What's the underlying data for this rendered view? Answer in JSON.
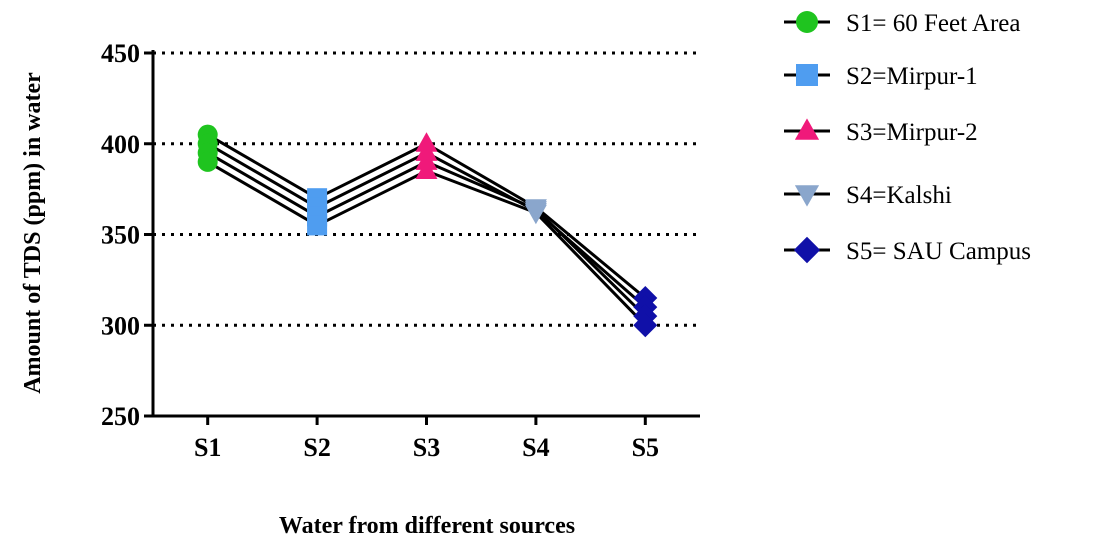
{
  "chart_data": {
    "type": "line",
    "xlabel": "Water from different sources",
    "ylabel": "Amount of  TDS (ppm) in water",
    "ylim": [
      250,
      450
    ],
    "yticks": [
      250,
      300,
      350,
      400,
      450
    ],
    "grid": "horizontal dotted",
    "legend_position": "right",
    "categories": [
      "S1",
      "S2",
      "S3",
      "S4",
      "S5"
    ],
    "series": [
      {
        "values": [
          405,
          370,
          400,
          365,
          315
        ]
      },
      {
        "values": [
          400,
          365,
          395,
          363,
          310
        ]
      },
      {
        "values": [
          395,
          360,
          390,
          364,
          305
        ]
      },
      {
        "values": [
          390,
          355,
          385,
          362,
          300
        ]
      }
    ],
    "markers": [
      {
        "category": "S1",
        "label": "S1= 60 Feet Area",
        "shape": "circle",
        "color": "#1fc41f"
      },
      {
        "category": "S2",
        "label": "S2=Mirpur-1",
        "shape": "square",
        "color": "#4f9df0"
      },
      {
        "category": "S3",
        "label": "S3=Mirpur-2",
        "shape": "triangle-up",
        "color": "#f0197a"
      },
      {
        "category": "S4",
        "label": "S4=Kalshi",
        "shape": "triangle-down",
        "color": "#8aa6cc"
      },
      {
        "category": "S5",
        "label": "S5= SAU Campus",
        "shape": "diamond",
        "color": "#1010a8"
      }
    ]
  }
}
